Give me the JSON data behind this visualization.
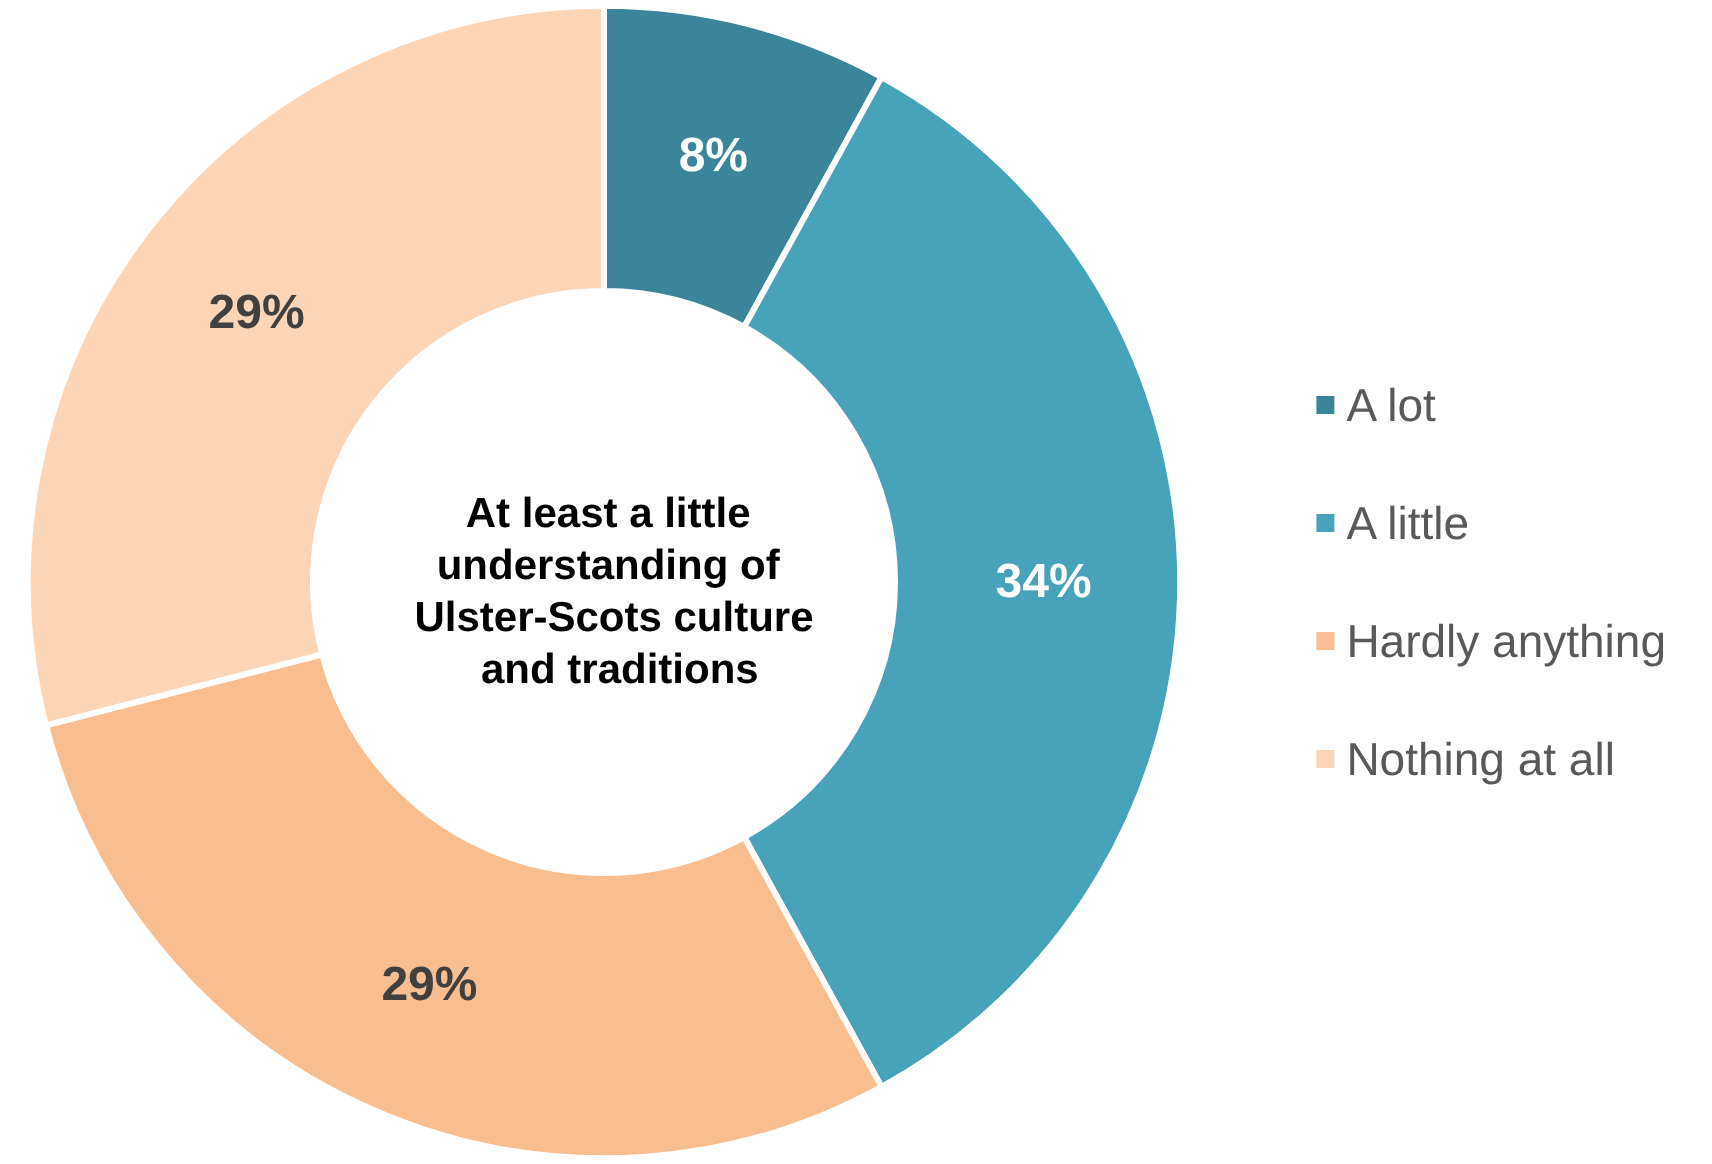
{
  "chart_data": {
    "type": "donut",
    "title": "At least a little understanding of Ulster-Scots culture and traditions",
    "categories": [
      "A lot",
      "A little",
      "Hardly anything",
      "Nothing at all"
    ],
    "values": [
      8,
      34,
      29,
      29
    ],
    "colors": [
      "#3a8599",
      "#47a3b9",
      "#f8be90",
      "#fbd5b5"
    ],
    "value_labels": [
      "8%",
      "34%",
      "29%",
      "29%"
    ],
    "legend": "right"
  }
}
